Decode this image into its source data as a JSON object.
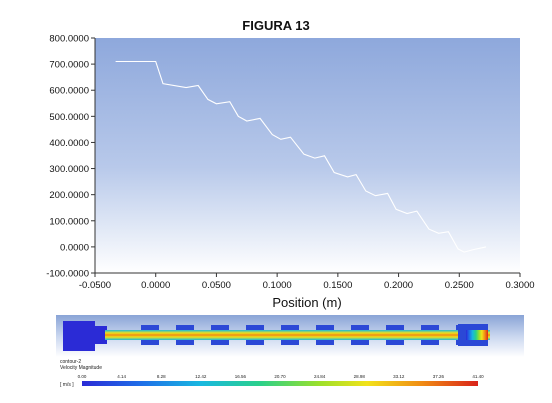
{
  "figure_title": "FIGURA 13",
  "chart_data": {
    "type": "line",
    "title": "",
    "xlabel": "Position (m)",
    "ylabel": "",
    "xlim": [
      -0.05,
      0.3
    ],
    "ylim": [
      -100,
      800
    ],
    "x_ticks": [
      "-0.0500",
      "0.0000",
      "0.0500",
      "0.1000",
      "0.1500",
      "0.2000",
      "0.2500",
      "0.3000"
    ],
    "x_tick_values": [
      -0.05,
      0.0,
      0.05,
      0.1,
      0.15,
      0.2,
      0.25,
      0.3
    ],
    "y_ticks": [
      "800.0000",
      "700.0000",
      "600.0000",
      "500.0000",
      "400.0000",
      "300.0000",
      "200.0000",
      "100.0000",
      "0.0000",
      "-100.0000"
    ],
    "y_tick_values": [
      800,
      700,
      600,
      500,
      400,
      300,
      200,
      100,
      0,
      -100
    ],
    "grid": false,
    "series": [
      {
        "color": "#ffffff",
        "x": [
          -0.033,
          0.0,
          0.006,
          0.025,
          0.035,
          0.043,
          0.05,
          0.061,
          0.068,
          0.075,
          0.086,
          0.096,
          0.103,
          0.111,
          0.122,
          0.131,
          0.139,
          0.147,
          0.158,
          0.165,
          0.173,
          0.181,
          0.191,
          0.198,
          0.207,
          0.215,
          0.225,
          0.233,
          0.241,
          0.249,
          0.254,
          0.262,
          0.272
        ],
        "y": [
          710,
          710,
          625,
          610,
          618,
          565,
          548,
          556,
          500,
          482,
          492,
          430,
          412,
          420,
          355,
          340,
          349,
          285,
          268,
          277,
          214,
          196,
          205,
          144,
          128,
          137,
          68,
          52,
          58,
          -8,
          -20,
          -10,
          0
        ]
      }
    ]
  },
  "contour_legend": {
    "name": "contour-2",
    "variable": "Velocity Magnitude",
    "ticks": [
      "0.00",
      "4.14",
      "8.28",
      "12.42",
      "16.56",
      "20.70",
      "24.84",
      "28.98",
      "33.12",
      "37.26",
      "41.40"
    ],
    "unit": "[ m/s ]"
  },
  "colors": {
    "plot_bg_top": "#95aedf",
    "plot_bg_bottom": "#ffffff",
    "line": "#ffffff",
    "contour_bg_top": "#8aa4d6",
    "contour_bg_bottom": "#ffffff"
  }
}
